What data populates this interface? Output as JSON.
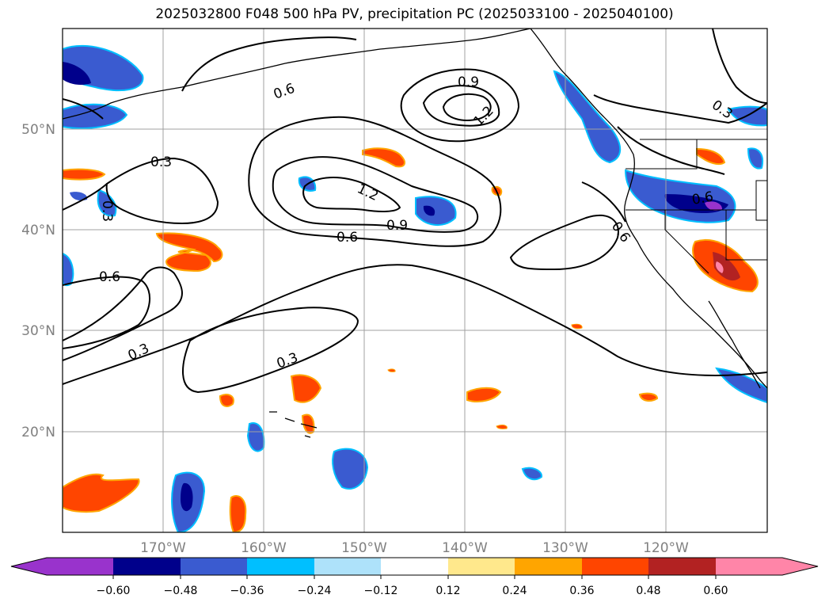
{
  "title": "2025032800 F048 500 hPa PV, precipitation PC (2025033100 - 2025040100)",
  "map": {
    "lon_labels": [
      "170°W",
      "160°W",
      "150°W",
      "140°W",
      "130°W",
      "120°W"
    ],
    "lat_labels": [
      "50°N",
      "40°N",
      "30°N",
      "20°N"
    ],
    "contour_labels": [
      "0.3",
      "0.3",
      "0.3",
      "0.3",
      "0.3",
      "0.6",
      "0.6",
      "0.6",
      "0.6",
      "0.6",
      "0.9",
      "0.9",
      "1.2",
      "1.2"
    ]
  },
  "colorbar": {
    "ticks": [
      "−0.60",
      "−0.48",
      "−0.36",
      "−0.24",
      "−0.12",
      "0.12",
      "0.24",
      "0.36",
      "0.48",
      "0.60"
    ],
    "colors": [
      "#9933cc",
      "#00008b",
      "#3a5bd0",
      "#00bfff",
      "#aee2fa",
      "#ffffff",
      "#ffe88c",
      "#ffa500",
      "#ff4500",
      "#b22222",
      "#ff85a8"
    ]
  }
}
